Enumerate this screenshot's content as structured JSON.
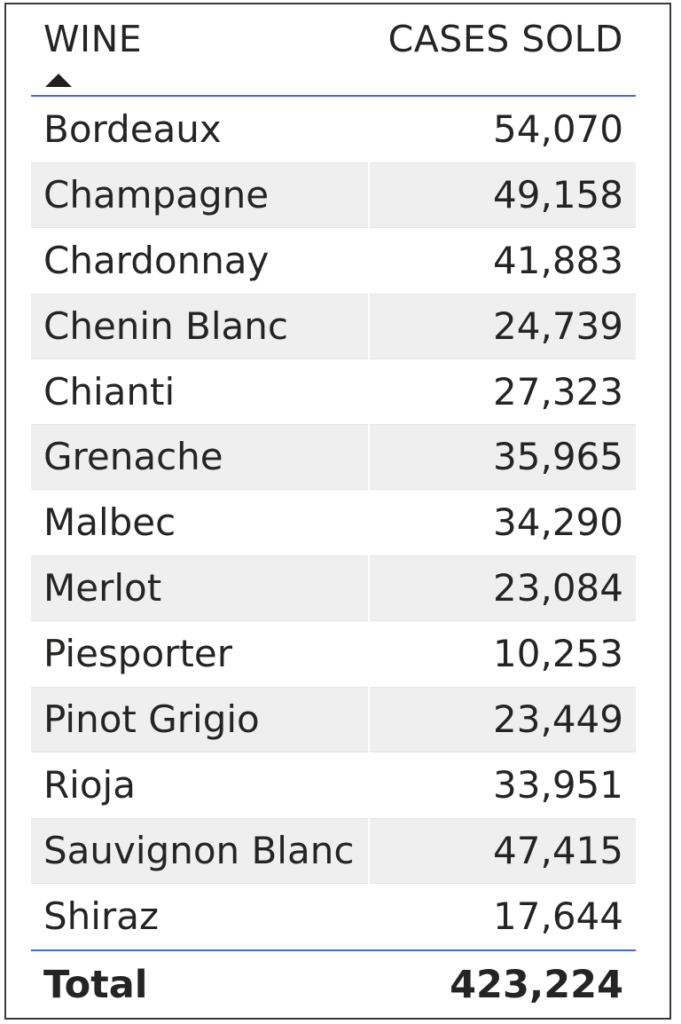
{
  "chart_data": {
    "type": "table",
    "columns": [
      "WINE",
      "CASES SOLD"
    ],
    "sort": {
      "column": "WINE",
      "direction": "ascending",
      "indicator": "triangle-up-icon"
    },
    "rows": [
      {
        "wine": "Bordeaux",
        "cases_sold": "54,070"
      },
      {
        "wine": "Champagne",
        "cases_sold": "49,158"
      },
      {
        "wine": "Chardonnay",
        "cases_sold": "41,883"
      },
      {
        "wine": "Chenin Blanc",
        "cases_sold": "24,739"
      },
      {
        "wine": "Chianti",
        "cases_sold": "27,323"
      },
      {
        "wine": "Grenache",
        "cases_sold": "35,965"
      },
      {
        "wine": "Malbec",
        "cases_sold": "34,290"
      },
      {
        "wine": "Merlot",
        "cases_sold": "23,084"
      },
      {
        "wine": "Piesporter",
        "cases_sold": "10,253"
      },
      {
        "wine": "Pinot Grigio",
        "cases_sold": "23,449"
      },
      {
        "wine": "Rioja",
        "cases_sold": "33,951"
      },
      {
        "wine": "Sauvignon Blanc",
        "cases_sold": "47,415"
      },
      {
        "wine": "Shiraz",
        "cases_sold": "17,644"
      }
    ],
    "total": {
      "label": "Total",
      "cases_sold": "423,224"
    },
    "colors": {
      "divider": "#3f6fc6",
      "alt_row": "#efefef",
      "text": "#252423"
    }
  }
}
